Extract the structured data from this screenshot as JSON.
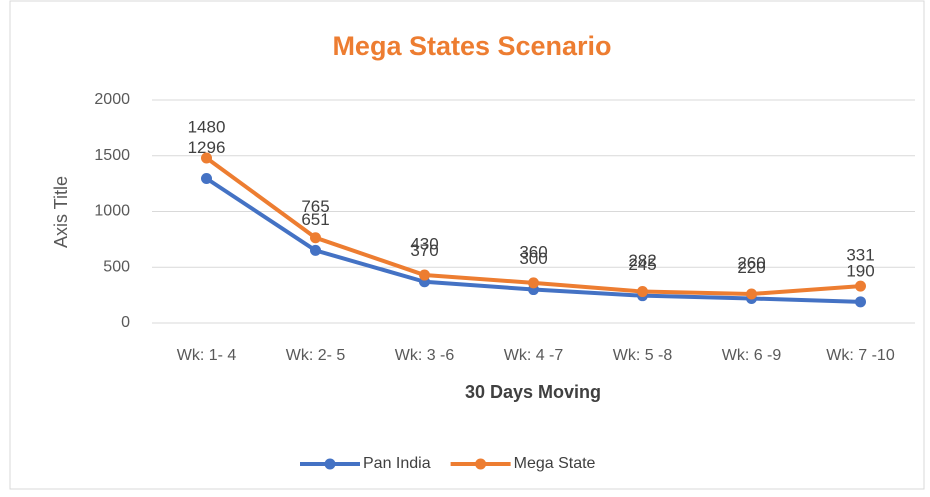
{
  "chart_data": {
    "type": "line",
    "title": "Mega States Scenario",
    "x_label": "30 Days Moving",
    "y_label": "Axis Title",
    "categories": [
      "Wk: 1- 4",
      "Wk: 2- 5",
      "Wk: 3 -6",
      "Wk: 4 -7",
      "Wk: 5 -8",
      "Wk: 6 -9",
      "Wk: 7 -10"
    ],
    "series": [
      {
        "name": "Pan India",
        "color": "#4472c4",
        "values": [
          1296,
          651,
          370,
          300,
          245,
          220,
          190
        ]
      },
      {
        "name": "Mega State",
        "color": "#ed7d31",
        "values": [
          1480,
          765,
          430,
          360,
          282,
          260,
          331
        ]
      }
    ],
    "ylim": [
      0,
      2000
    ],
    "yticks": [
      0,
      500,
      1000,
      1500,
      2000
    ],
    "grid": true,
    "legend": "bottom"
  }
}
